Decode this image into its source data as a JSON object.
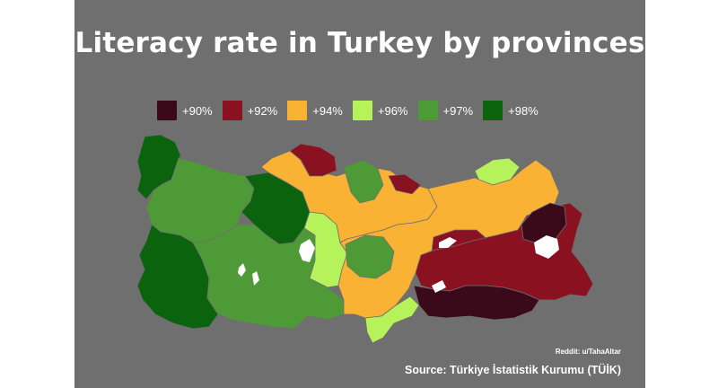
{
  "title": "Literacy rate in Turkey by provinces",
  "legend": [
    {
      "label": "+90%",
      "color": "#3b0a1a"
    },
    {
      "label": "+92%",
      "color": "#8a1120"
    },
    {
      "label": "+94%",
      "color": "#f9b233"
    },
    {
      "label": "+96%",
      "color": "#b6f25a"
    },
    {
      "label": "+97%",
      "color": "#4e9a36"
    },
    {
      "label": "+98%",
      "color": "#0b630e"
    }
  ],
  "regions": [
    {
      "level": "+98%",
      "area": "thrace-istanbul"
    },
    {
      "level": "+97%",
      "area": "marmara-aegean"
    },
    {
      "level": "+98%",
      "area": "aegean-coast"
    },
    {
      "level": "+98%",
      "area": "ankara-central"
    },
    {
      "level": "+97%",
      "area": "mediterranean-west"
    },
    {
      "level": "+96%",
      "area": "central-anatolia-belt"
    },
    {
      "level": "+94%",
      "area": "central-black-sea"
    },
    {
      "level": "+92%",
      "area": "sinop-samsun"
    },
    {
      "level": "+92%",
      "area": "ordu-giresun"
    },
    {
      "level": "+97%",
      "area": "tokat-amasya"
    },
    {
      "level": "+96%",
      "area": "trabzon-rize"
    },
    {
      "level": "+94%",
      "area": "east-central"
    },
    {
      "level": "+97%",
      "area": "kayseri"
    },
    {
      "level": "+92%",
      "area": "malatya-elazig"
    },
    {
      "level": "+92%",
      "area": "southeast-east"
    },
    {
      "level": "+90%",
      "area": "sanliurfa-mardin-sirnak"
    },
    {
      "level": "+90%",
      "area": "agri-van"
    },
    {
      "level": "+96%",
      "area": "adana-hatay"
    }
  ],
  "credit": "Reddit: u/TahaAltar",
  "source": "Source: Türkiye İstatistik Kurumu (TÜİK)"
}
